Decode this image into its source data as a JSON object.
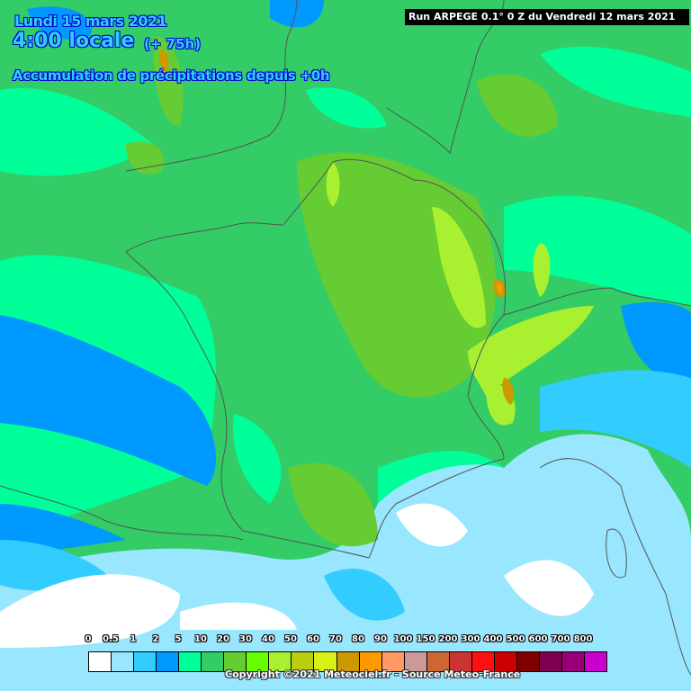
{
  "header": {
    "date": "Lundi 15 mars 2021",
    "local_time": "4:00 locale",
    "lead_time": "(+ 75h)",
    "subtitle": "Accumulation de précipitations depuis +0h",
    "run": "Run ARPEGE 0.1° 0 Z du Vendredi 12 mars 2021"
  },
  "legend": {
    "labels": [
      "0",
      "0.5",
      "1",
      "2",
      "5",
      "10",
      "20",
      "30",
      "40",
      "50",
      "60",
      "70",
      "80",
      "90",
      "100",
      "150",
      "200",
      "300",
      "400",
      "500",
      "600",
      "700",
      "800"
    ],
    "colors": [
      "#ffffff",
      "#99e6ff",
      "#33ccff",
      "#0099ff",
      "#00ff99",
      "#33cc66",
      "#66cc33",
      "#66ff00",
      "#a8f030",
      "#bccc10",
      "#d8f018",
      "#cc9900",
      "#ff9900",
      "#ff9966",
      "#cc9999",
      "#cc6633",
      "#cc3333",
      "#ff1010",
      "#cc0000",
      "#800000",
      "#800050",
      "#990077",
      "#cc00cc"
    ]
  },
  "footer": {
    "copyright": "Copyright ©2021 Meteociel.fr - Source Meteo-France"
  }
}
